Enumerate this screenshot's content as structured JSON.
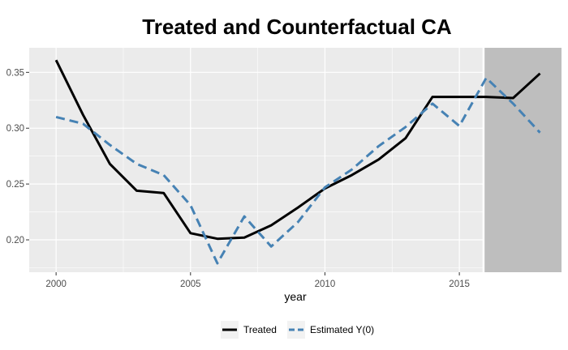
{
  "chart_data": {
    "type": "line",
    "title": "Treated and Counterfactual CA",
    "xlabel": "year",
    "ylabel": "",
    "xlim": [
      1999.0,
      2018.8
    ],
    "ylim": [
      0.171,
      0.372
    ],
    "x_ticks": [
      2000,
      2005,
      2010,
      2015
    ],
    "x_tick_labels": [
      "2000",
      "2005",
      "2010",
      "2015"
    ],
    "y_ticks": [
      0.2,
      0.25,
      0.3,
      0.35
    ],
    "y_tick_labels": [
      "0.20",
      "0.25",
      "0.30",
      "0.35"
    ],
    "grid": true,
    "legend_position": "bottom",
    "post_treatment_shading": {
      "start": 2015.9,
      "end": 2018.8
    },
    "x": [
      2000,
      2001,
      2002,
      2003,
      2004,
      2005,
      2006,
      2007,
      2008,
      2009,
      2010,
      2011,
      2012,
      2013,
      2014,
      2015,
      2016,
      2017,
      2018
    ],
    "series": [
      {
        "name": "Treated",
        "color": "#000000",
        "style": "solid",
        "values": [
          0.361,
          0.312,
          0.268,
          0.244,
          0.242,
          0.206,
          0.201,
          0.202,
          0.213,
          0.229,
          0.246,
          0.258,
          0.272,
          0.291,
          0.328,
          0.328,
          0.328,
          0.327,
          0.349
        ]
      },
      {
        "name": "Estimated Y(0)",
        "color": "#4682b4",
        "style": "dashed",
        "values": [
          0.31,
          0.304,
          0.285,
          0.268,
          0.258,
          0.231,
          0.179,
          0.221,
          0.194,
          0.216,
          0.247,
          0.263,
          0.284,
          0.301,
          0.322,
          0.302,
          0.345,
          0.322,
          0.296
        ]
      }
    ]
  }
}
